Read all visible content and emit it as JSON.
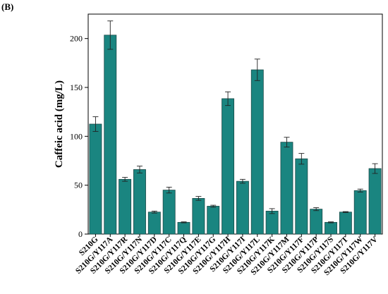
{
  "panel_label": "(B)",
  "chart_data": {
    "type": "bar",
    "ylabel": "Caffeic acid (mg/L)",
    "xlabel": "",
    "ylim": [
      0,
      225
    ],
    "yticks": [
      0,
      50,
      100,
      150,
      200
    ],
    "grid": false,
    "bar_color": "#1a8580",
    "categories": [
      "S210G",
      "S210G/Y117A",
      "S210G/Y117R",
      "S210G/Y117N",
      "S210G/Y117D",
      "S210G/Y117C",
      "S210G/Y117Q",
      "S210G/Y117E",
      "S210G/Y117G",
      "S210G/Y117H",
      "S210G/Y117I",
      "S210G/Y117L",
      "S210G/Y117K",
      "S210G/Y117M",
      "S210G/Y117F",
      "S210G/Y117P",
      "S210G/Y117S",
      "S210G/Y117T",
      "S210G/Y117W",
      "S210G/Y117V"
    ],
    "values": [
      112.5,
      203.5,
      56,
      66,
      22.5,
      45,
      12,
      36.5,
      28.5,
      138.5,
      54,
      168,
      23.5,
      94,
      77,
      25.5,
      12,
      22.5,
      44.5,
      67
    ],
    "errors": [
      7.5,
      14.5,
      2,
      3.5,
      1,
      3,
      0.5,
      2,
      1,
      7,
      2,
      11,
      2.5,
      5,
      5.5,
      1.5,
      0.5,
      0.5,
      1.5,
      5
    ]
  }
}
